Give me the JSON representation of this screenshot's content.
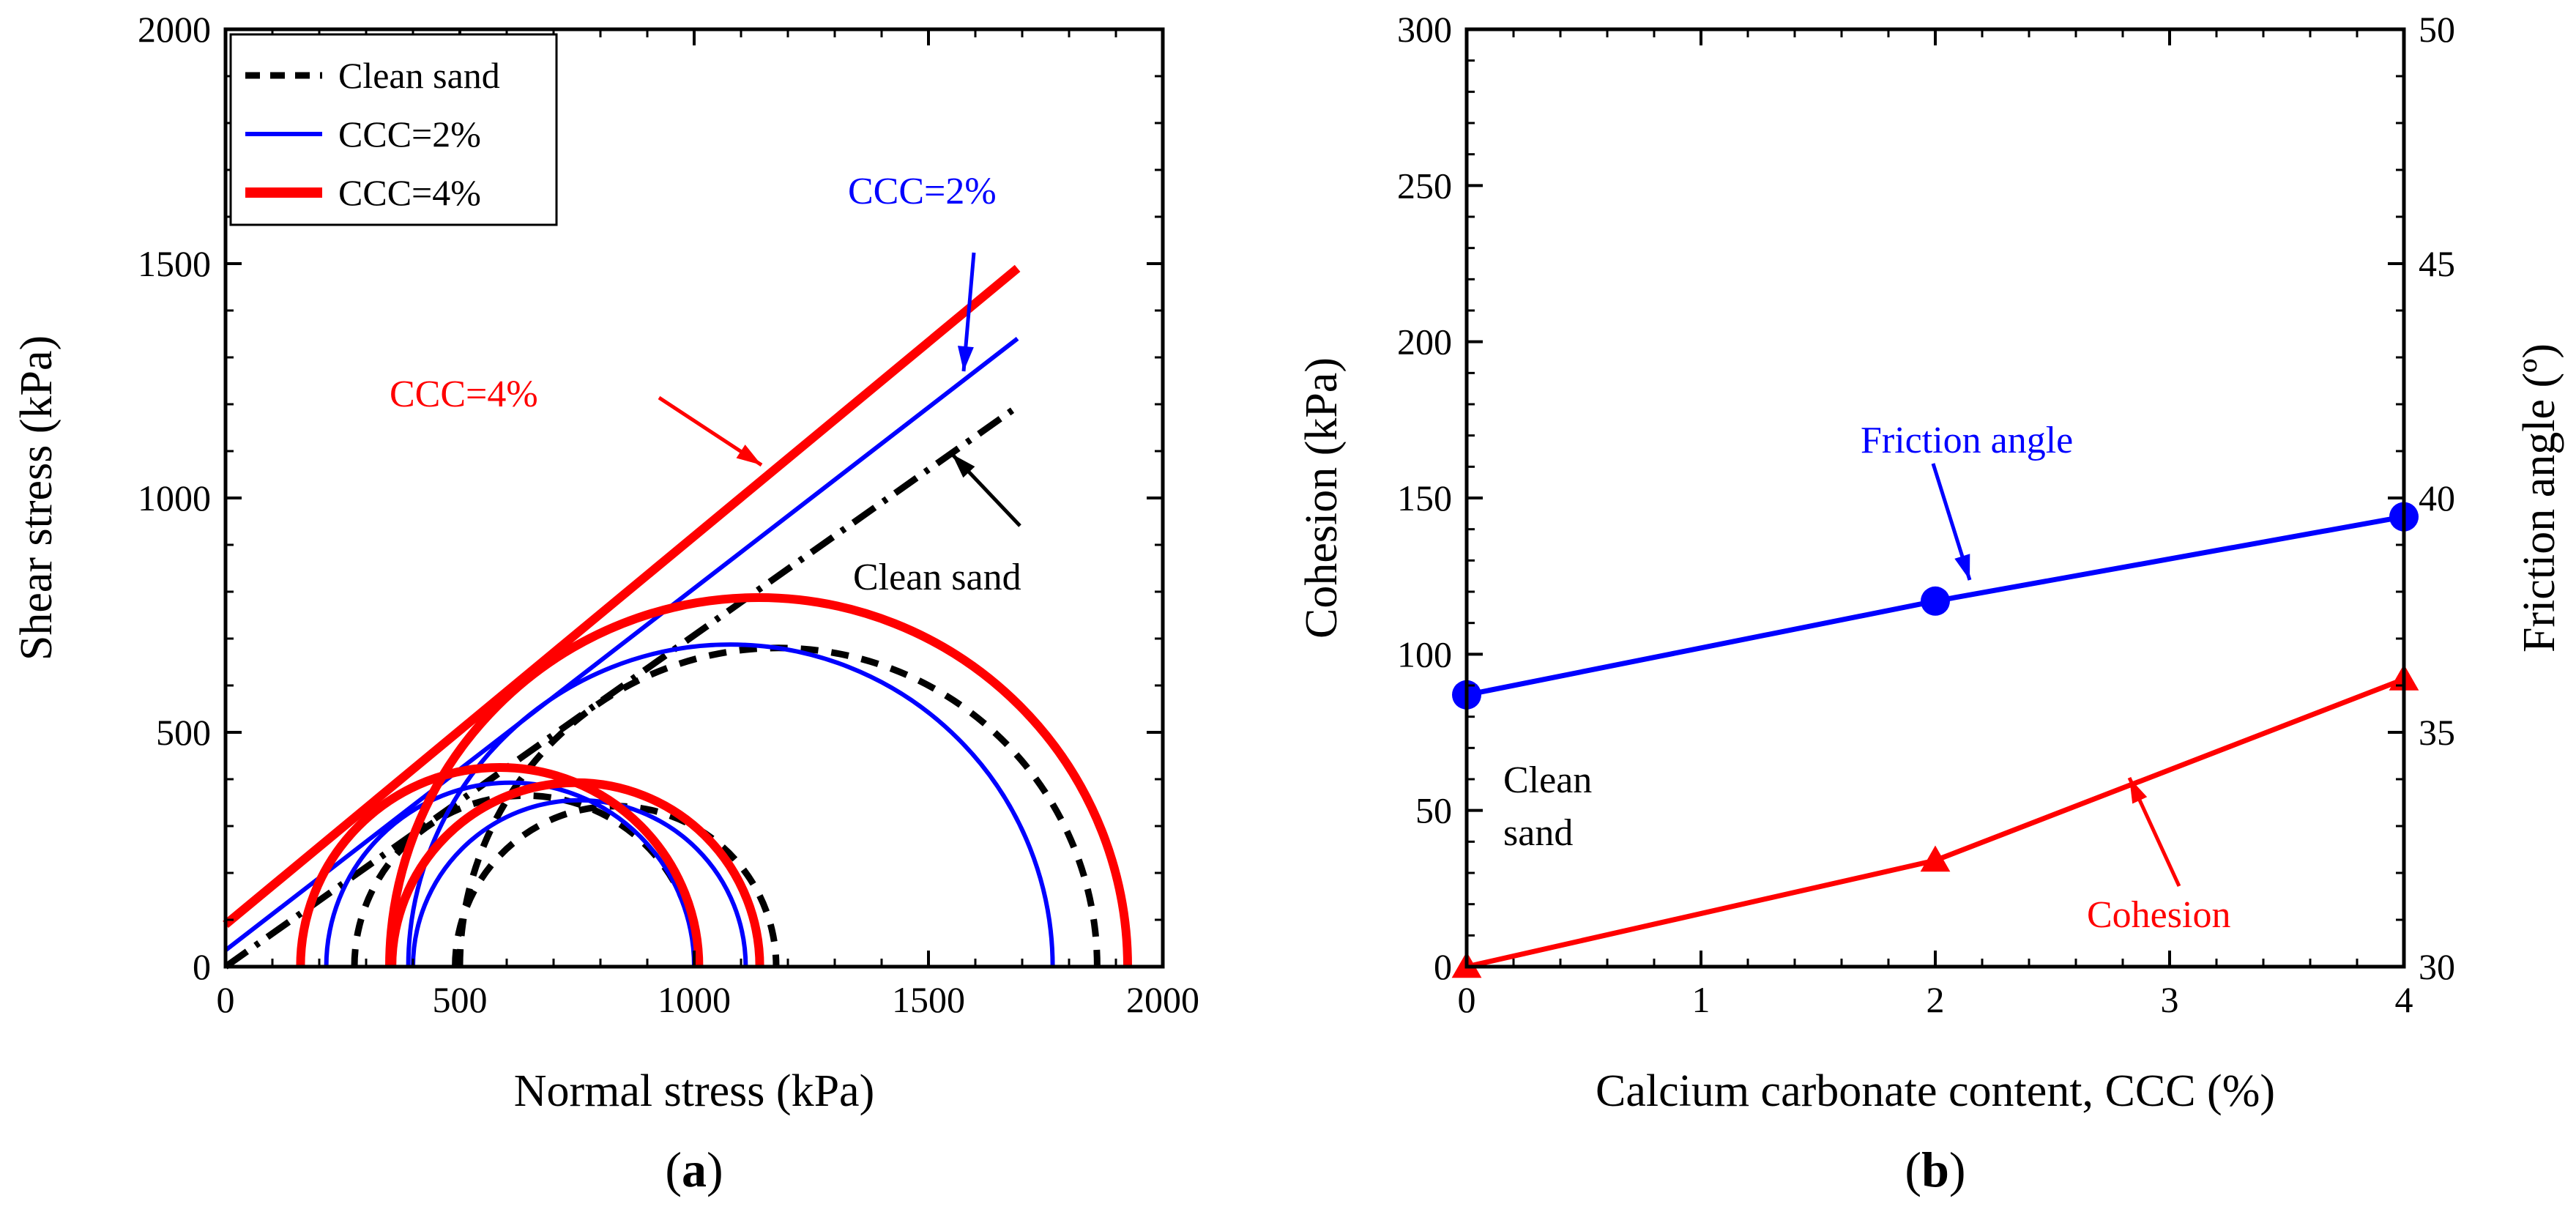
{
  "panel_labels": {
    "a": "a",
    "b": "b"
  },
  "chart_data": [
    {
      "type": "line",
      "panel": "a",
      "xlabel": "Normal stress (kPa)",
      "ylabel": "Shear stress (kPa)",
      "xlim": [
        0,
        2000
      ],
      "ylim": [
        0,
        2000
      ],
      "x_ticks": [
        0,
        500,
        1000,
        1500,
        2000
      ],
      "y_ticks": [
        0,
        500,
        1000,
        1500,
        2000
      ],
      "grid": false,
      "legend_position": "top-left",
      "legend": [
        {
          "label": "Clean sand",
          "color": "#000000",
          "style": "dashed"
        },
        {
          "label": "CCC=2%",
          "color": "#0000ff",
          "style": "solid"
        },
        {
          "label": "CCC=4%",
          "color": "#ff0000",
          "style": "solid-thick"
        }
      ],
      "series": [
        {
          "name": "Clean sand",
          "color": "#000000",
          "circles": [
            {
              "sigma3": 490,
              "sigma1": 1175
            },
            {
              "sigma3": 275,
              "sigma1": 1005
            },
            {
              "sigma3": 500,
              "sigma1": 1860
            }
          ],
          "envelope": {
            "x": [
              0,
              1690
            ],
            "y": [
              0,
              1195
            ]
          }
        },
        {
          "name": "CCC=2%",
          "color": "#0000ff",
          "circles": [
            {
              "sigma3": 400,
              "sigma1": 1110
            },
            {
              "sigma3": 215,
              "sigma1": 1000
            },
            {
              "sigma3": 390,
              "sigma1": 1765
            }
          ],
          "envelope": {
            "x": [
              0,
              1690
            ],
            "y": [
              35,
              1340
            ]
          }
        },
        {
          "name": "CCC=4%",
          "color": "#ff0000",
          "circles": [
            {
              "sigma3": 355,
              "sigma1": 1140
            },
            {
              "sigma3": 160,
              "sigma1": 1010
            },
            {
              "sigma3": 350,
              "sigma1": 1925
            }
          ],
          "envelope": {
            "x": [
              0,
              1690
            ],
            "y": [
              90,
              1490
            ]
          }
        }
      ],
      "annotations": [
        {
          "text": "CCC=2%",
          "color": "#0000ff"
        },
        {
          "text": "CCC=4%",
          "color": "#ff0000"
        },
        {
          "text": "Clean sand",
          "color": "#000000"
        }
      ]
    },
    {
      "type": "line",
      "panel": "b",
      "xlabel": "Calcium carbonate content, CCC (%)",
      "ylabel": "Cohesion (kPa)",
      "y2label": "Friction angle (º)",
      "xlim": [
        0,
        4
      ],
      "ylim": [
        0,
        300
      ],
      "y2lim": [
        30,
        50
      ],
      "x_ticks": [
        0,
        1,
        2,
        3,
        4
      ],
      "y_ticks": [
        0,
        50,
        100,
        150,
        200,
        250,
        300
      ],
      "y2_ticks": [
        30,
        35,
        40,
        45,
        50
      ],
      "grid": false,
      "series": [
        {
          "name": "Friction angle",
          "axis": "right",
          "color": "#0000ff",
          "marker": "circle",
          "x": [
            0,
            2,
            4
          ],
          "y": [
            35.8,
            37.8,
            39.6
          ]
        },
        {
          "name": "Cohesion",
          "axis": "left",
          "color": "#ff0000",
          "marker": "triangle",
          "x": [
            0,
            2,
            4
          ],
          "y": [
            0,
            34,
            92
          ]
        }
      ],
      "annotations": [
        {
          "text": "Friction angle",
          "color": "#0000ff"
        },
        {
          "text": "Cohesion",
          "color": "#ff0000"
        },
        {
          "text": "Clean",
          "color": "#000000"
        },
        {
          "text": "sand",
          "color": "#000000"
        }
      ]
    }
  ]
}
